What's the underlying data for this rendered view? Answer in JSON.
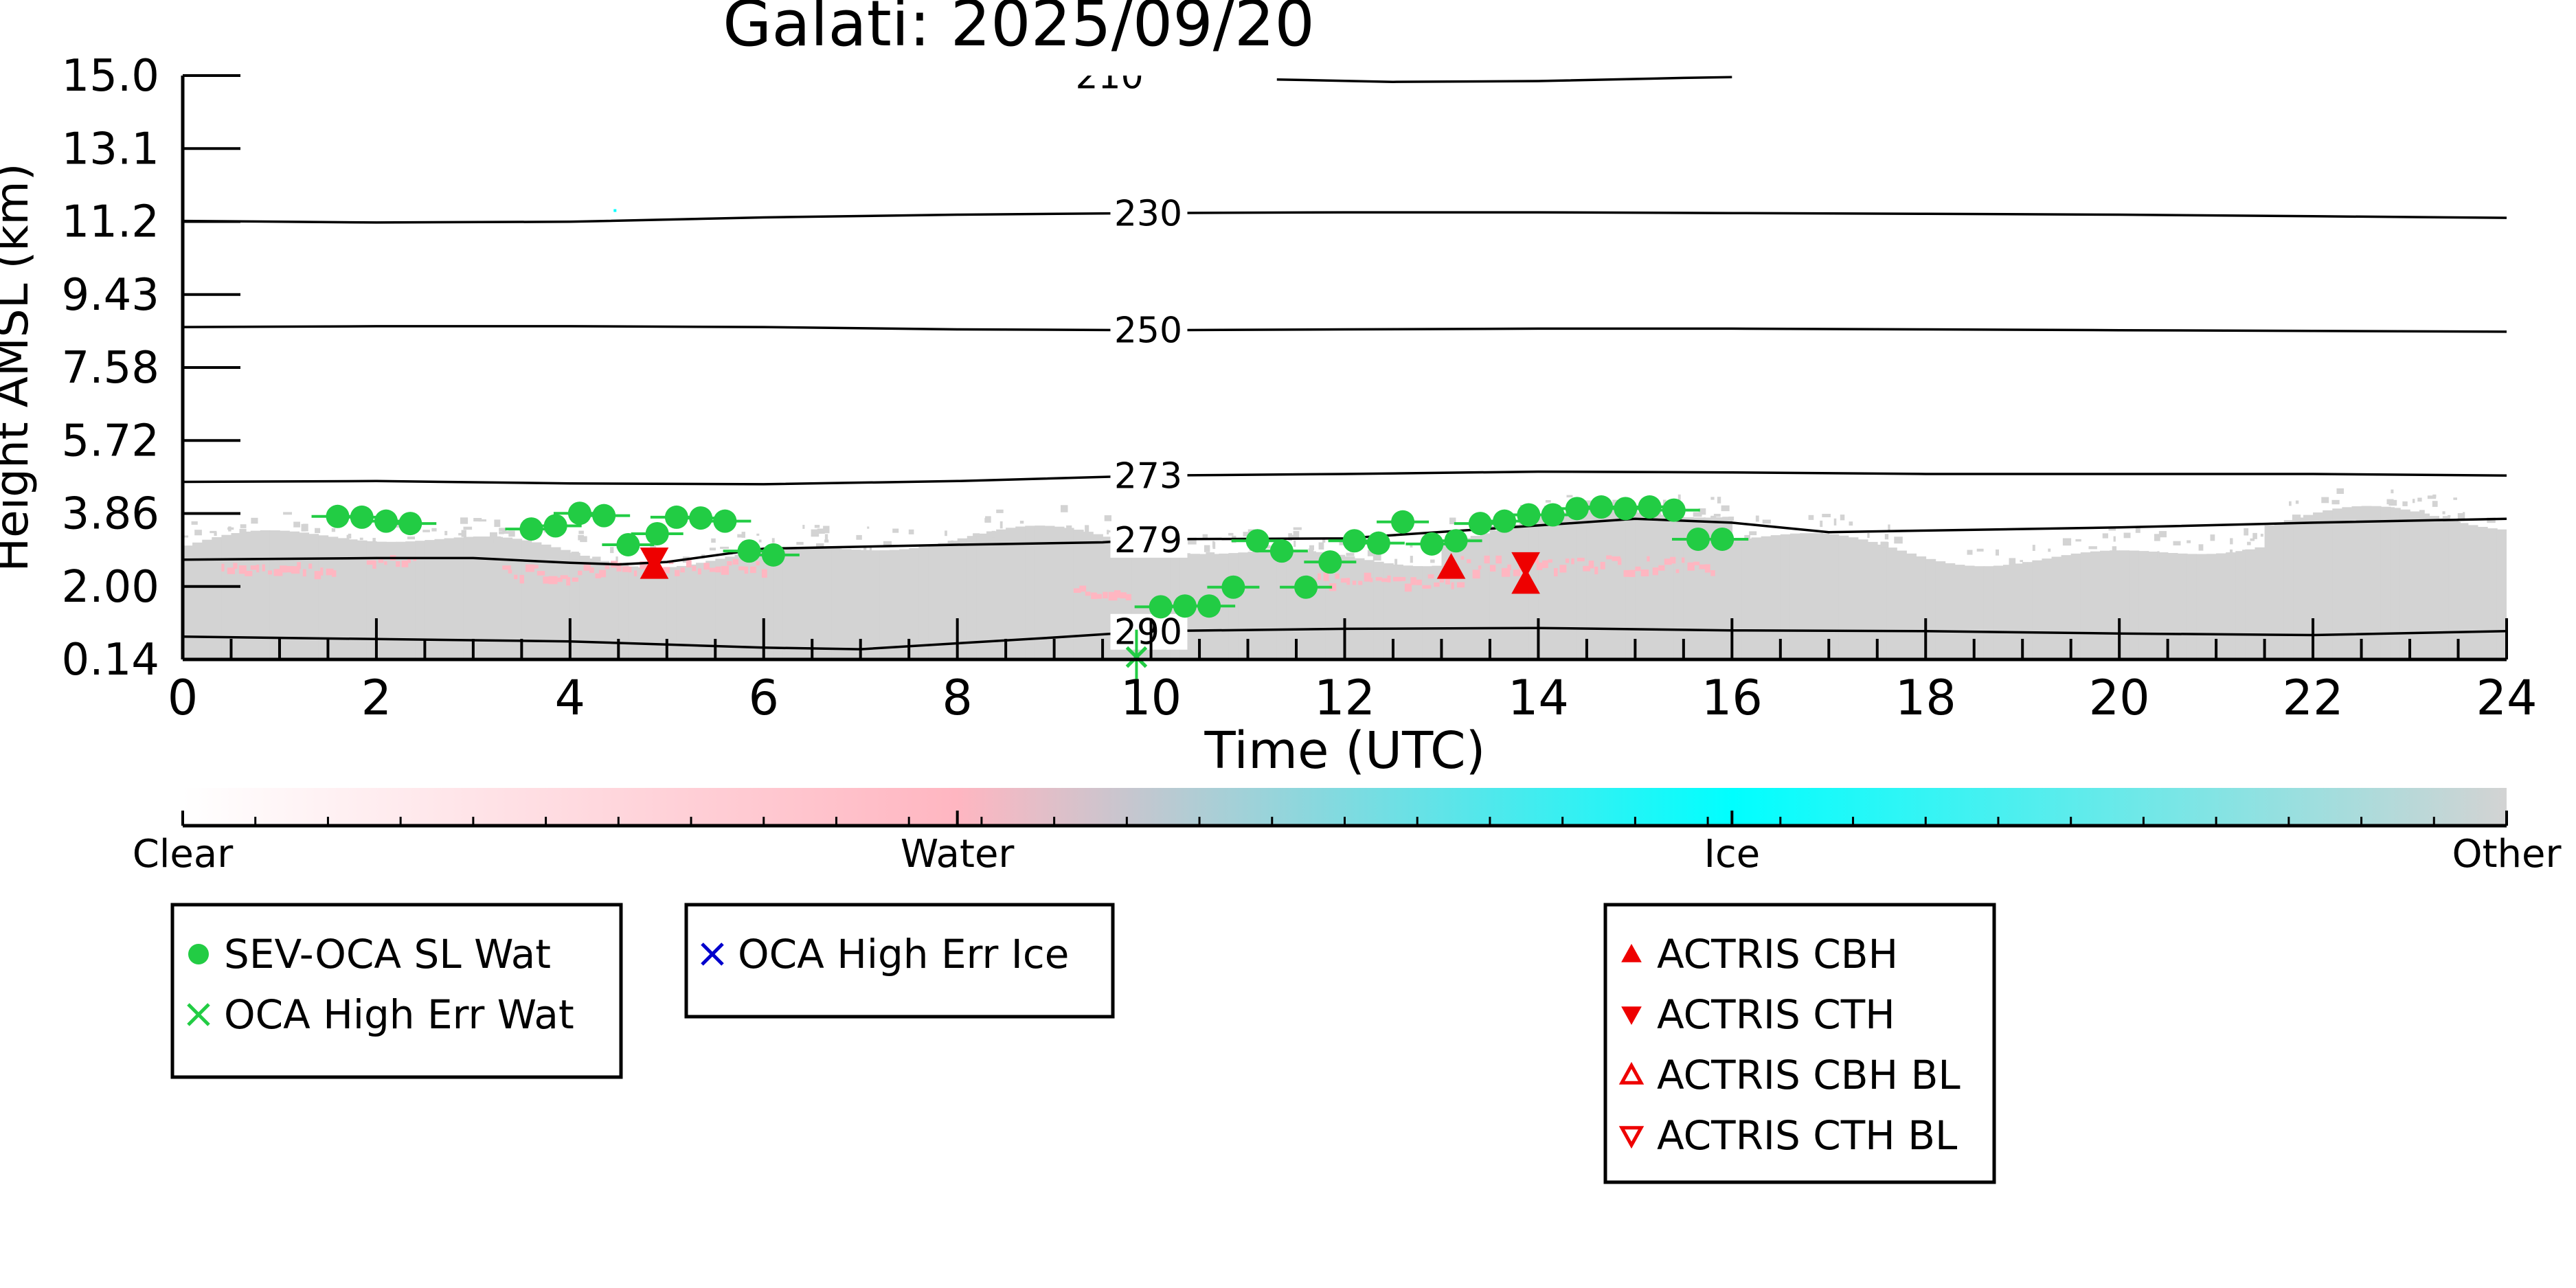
{
  "chart_data": {
    "type": "scatter",
    "title": "Galati: 2025/09/20",
    "xlabel": "Time (UTC)",
    "ylabel": "Height AMSL (km)",
    "xlim": [
      0,
      24
    ],
    "ylim": [
      0.14,
      15.0
    ],
    "x_ticks": [
      "0",
      "2",
      "4",
      "6",
      "8",
      "10",
      "12",
      "14",
      "16",
      "18",
      "20",
      "22",
      "24"
    ],
    "y_ticks": [
      "0.14",
      "2.00",
      "3.86",
      "5.72",
      "7.58",
      "9.43",
      "11.2",
      "13.1",
      "15.0"
    ],
    "background_field": "cloud classification (grey: Other, pink: Water)",
    "colorbar": {
      "labels": [
        "Clear",
        "Water",
        "Ice",
        "Other"
      ],
      "colors": [
        "#ffffff",
        "#ffb6c1",
        "#00ffff",
        "#d3d3d3"
      ]
    },
    "temperature_contours": [
      {
        "label": "210",
        "label_x": 9.5,
        "points": [
          [
            11.3,
            14.9
          ],
          [
            12.5,
            14.84
          ],
          [
            14,
            14.86
          ],
          [
            15.5,
            14.94
          ],
          [
            16,
            14.96
          ]
        ]
      },
      {
        "label": "230",
        "label_x": 9.9,
        "points": [
          [
            0,
            11.3
          ],
          [
            2,
            11.26
          ],
          [
            4,
            11.28
          ],
          [
            6,
            11.39
          ],
          [
            8,
            11.46
          ],
          [
            10,
            11.5
          ],
          [
            12,
            11.52
          ],
          [
            14,
            11.52
          ],
          [
            16,
            11.5
          ],
          [
            18,
            11.48
          ],
          [
            20,
            11.46
          ],
          [
            22,
            11.42
          ],
          [
            24,
            11.38
          ]
        ]
      },
      {
        "label": "250",
        "label_x": 9.9,
        "points": [
          [
            0,
            8.6
          ],
          [
            2,
            8.62
          ],
          [
            4,
            8.62
          ],
          [
            6,
            8.6
          ],
          [
            8,
            8.54
          ],
          [
            10,
            8.52
          ],
          [
            12,
            8.54
          ],
          [
            14,
            8.56
          ],
          [
            16,
            8.56
          ],
          [
            18,
            8.54
          ],
          [
            20,
            8.52
          ],
          [
            22,
            8.5
          ],
          [
            24,
            8.48
          ]
        ]
      },
      {
        "label": "273",
        "label_x": 9.9,
        "points": [
          [
            0,
            4.66
          ],
          [
            2,
            4.68
          ],
          [
            4,
            4.62
          ],
          [
            6,
            4.6
          ],
          [
            8,
            4.68
          ],
          [
            10,
            4.82
          ],
          [
            12,
            4.86
          ],
          [
            14,
            4.92
          ],
          [
            16,
            4.9
          ],
          [
            18,
            4.86
          ],
          [
            20,
            4.86
          ],
          [
            22,
            4.86
          ],
          [
            24,
            4.82
          ]
        ]
      },
      {
        "label": "279",
        "label_x": 9.9,
        "points": [
          [
            0,
            2.68
          ],
          [
            2,
            2.72
          ],
          [
            3,
            2.72
          ],
          [
            4,
            2.6
          ],
          [
            4.5,
            2.56
          ],
          [
            5,
            2.62
          ],
          [
            6,
            2.96
          ],
          [
            8,
            3.06
          ],
          [
            9.5,
            3.12
          ],
          [
            10,
            3.2
          ],
          [
            12,
            3.22
          ],
          [
            14,
            3.55
          ],
          [
            15,
            3.72
          ],
          [
            16,
            3.62
          ],
          [
            17,
            3.38
          ],
          [
            18,
            3.42
          ],
          [
            20,
            3.5
          ],
          [
            22,
            3.62
          ],
          [
            24,
            3.72
          ]
        ]
      },
      {
        "label": "290",
        "label_x": 9.9,
        "points": [
          [
            0,
            0.72
          ],
          [
            2,
            0.66
          ],
          [
            4,
            0.6
          ],
          [
            6,
            0.44
          ],
          [
            7,
            0.4
          ],
          [
            8,
            0.55
          ],
          [
            9,
            0.7
          ],
          [
            10,
            0.86
          ],
          [
            12,
            0.92
          ],
          [
            14,
            0.94
          ],
          [
            16,
            0.88
          ],
          [
            18,
            0.86
          ],
          [
            20,
            0.8
          ],
          [
            22,
            0.76
          ],
          [
            24,
            0.86
          ]
        ]
      }
    ],
    "series": [
      {
        "name": "SEV-OCA SL Wat",
        "marker": "filled-circle",
        "color": "#22cc44",
        "points": [
          [
            1.6,
            3.78
          ],
          [
            1.85,
            3.76
          ],
          [
            2.1,
            3.66
          ],
          [
            2.35,
            3.6
          ],
          [
            3.6,
            3.46
          ],
          [
            3.85,
            3.54
          ],
          [
            4.1,
            3.86
          ],
          [
            4.35,
            3.8
          ],
          [
            4.6,
            3.06
          ],
          [
            4.9,
            3.34
          ],
          [
            5.1,
            3.76
          ],
          [
            5.35,
            3.74
          ],
          [
            5.6,
            3.66
          ],
          [
            5.85,
            2.9
          ],
          [
            6.1,
            2.8
          ],
          [
            10.1,
            1.48
          ],
          [
            10.35,
            1.5
          ],
          [
            10.6,
            1.5
          ],
          [
            10.85,
            1.98
          ],
          [
            11.1,
            3.16
          ],
          [
            11.35,
            2.9
          ],
          [
            11.6,
            1.98
          ],
          [
            11.85,
            2.62
          ],
          [
            12.1,
            3.16
          ],
          [
            12.35,
            3.1
          ],
          [
            12.6,
            3.64
          ],
          [
            12.9,
            3.08
          ],
          [
            13.15,
            3.16
          ],
          [
            13.4,
            3.6
          ],
          [
            13.65,
            3.66
          ],
          [
            13.9,
            3.82
          ],
          [
            14.15,
            3.82
          ],
          [
            14.4,
            3.98
          ],
          [
            14.65,
            4.02
          ],
          [
            14.9,
            3.98
          ],
          [
            15.15,
            4.02
          ],
          [
            15.4,
            3.94
          ],
          [
            15.65,
            3.2
          ],
          [
            15.9,
            3.2
          ]
        ]
      },
      {
        "name": "OCA High Err Wat",
        "marker": "x",
        "color": "#22cc44",
        "points": [
          [
            9.85,
            0.2
          ]
        ]
      },
      {
        "name": "OCA High Err Ice",
        "marker": "x",
        "color": "#0000cc",
        "points": []
      },
      {
        "name": "ACTRIS CBH",
        "marker": "triangle-up",
        "color": "#ee0000",
        "points": [
          [
            4.87,
            2.48
          ],
          [
            13.1,
            2.48
          ],
          [
            13.87,
            2.1
          ]
        ]
      },
      {
        "name": "ACTRIS CTH",
        "marker": "triangle-down",
        "color": "#ee0000",
        "points": [
          [
            4.87,
            2.7
          ],
          [
            13.87,
            2.58
          ]
        ]
      },
      {
        "name": "ACTRIS CBH BL",
        "marker": "triangle-up-open",
        "color": "#ee0000",
        "points": []
      },
      {
        "name": "ACTRIS CTH BL",
        "marker": "triangle-down-open",
        "color": "#ee0000",
        "points": []
      }
    ],
    "legend_groups": [
      [
        "SEV-OCA SL Wat",
        "OCA High Err Wat"
      ],
      [
        "OCA High Err Ice"
      ],
      [
        "ACTRIS CBH",
        "ACTRIS CTH",
        "ACTRIS CBH BL",
        "ACTRIS CTH BL"
      ]
    ],
    "grid": false
  }
}
